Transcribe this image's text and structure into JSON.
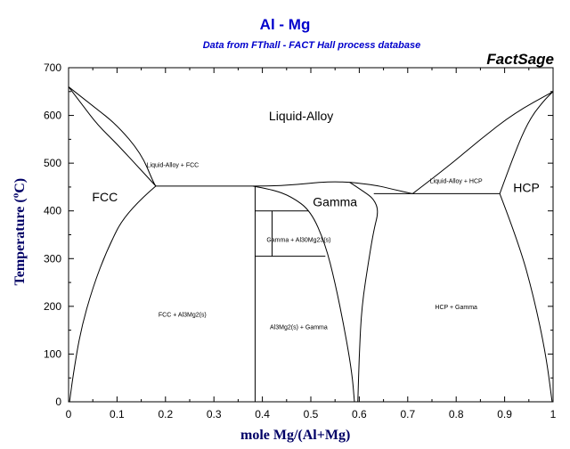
{
  "header": {
    "title": "Al - Mg",
    "subtitle": "Data from FThall - FACT Hall process database",
    "brand": "FactSage"
  },
  "chart_data": {
    "type": "phase-diagram",
    "xlabel": "mole Mg/(Al+Mg)",
    "ylabel": "Temperature (C)",
    "ylabel_sup": "o",
    "xlim": [
      0,
      1
    ],
    "ylim": [
      0,
      700
    ],
    "xticks": [
      "0",
      "0.1",
      "0.2",
      "0.3",
      "0.4",
      "0.5",
      "0.6",
      "0.7",
      "0.8",
      "0.9",
      "1"
    ],
    "yticks": [
      "0",
      "100",
      "200",
      "300",
      "400",
      "500",
      "600",
      "700"
    ],
    "colors": {
      "gamma": "#dd0000",
      "title": "#0000cc",
      "axis_label": "#000066"
    },
    "regions": [
      {
        "id": "liquid",
        "label": "Liquid-Alloy",
        "x": 0.48,
        "y": 590,
        "size": "big"
      },
      {
        "id": "fcc",
        "label": "FCC",
        "x": 0.075,
        "y": 420,
        "size": "big"
      },
      {
        "id": "hcp",
        "label": "HCP",
        "x": 0.945,
        "y": 440,
        "size": "big"
      },
      {
        "id": "gamma",
        "label": "Gamma",
        "x": 0.55,
        "y": 410,
        "size": "big",
        "color": "gamma"
      },
      {
        "id": "liq-fcc",
        "label": "Liquid-Alloy + FCC",
        "x": 0.215,
        "y": 492,
        "size": "small"
      },
      {
        "id": "liq-hcp",
        "label": "Liquid-Alloy + HCP",
        "x": 0.8,
        "y": 458,
        "size": "small"
      },
      {
        "id": "gamma-al30",
        "label": "Gamma + Al30Mg23(s)",
        "x": 0.475,
        "y": 335,
        "size": "small"
      },
      {
        "id": "fcc-al3mg2",
        "label": "FCC + Al3Mg2(s)",
        "x": 0.235,
        "y": 178,
        "size": "small"
      },
      {
        "id": "al3mg2-gamma",
        "label": "Al3Mg2(s) + Gamma",
        "x": 0.475,
        "y": 152,
        "size": "small"
      },
      {
        "id": "hcp-gamma",
        "label": "HCP + Gamma",
        "x": 0.8,
        "y": 194,
        "size": "small"
      }
    ],
    "boundaries": [
      {
        "id": "liquidus-left",
        "points": [
          [
            0,
            660
          ],
          [
            0.05,
            620
          ],
          [
            0.1,
            580
          ],
          [
            0.15,
            520
          ],
          [
            0.175,
            460
          ],
          [
            0.18,
            452
          ]
        ]
      },
      {
        "id": "solidus-fcc",
        "points": [
          [
            0,
            660
          ],
          [
            0.03,
            620
          ],
          [
            0.06,
            580
          ],
          [
            0.1,
            540
          ],
          [
            0.15,
            485
          ],
          [
            0.18,
            452
          ]
        ]
      },
      {
        "id": "fcc-solvus",
        "points": [
          [
            0.18,
            452
          ],
          [
            0.12,
            400
          ],
          [
            0.08,
            320
          ],
          [
            0.05,
            240
          ],
          [
            0.025,
            150
          ],
          [
            0.01,
            60
          ],
          [
            0.002,
            0
          ]
        ]
      },
      {
        "id": "eutectic-fcc",
        "points": [
          [
            0.18,
            452
          ],
          [
            0.38,
            452
          ]
        ]
      },
      {
        "id": "liquidus-mid-left",
        "points": [
          [
            0.38,
            452
          ],
          [
            0.42,
            452
          ],
          [
            0.47,
            455
          ],
          [
            0.52,
            460
          ],
          [
            0.55,
            461
          ],
          [
            0.58,
            460
          ]
        ]
      },
      {
        "id": "liquidus-mid-right",
        "points": [
          [
            0.58,
            460
          ],
          [
            0.63,
            455
          ],
          [
            0.67,
            445
          ],
          [
            0.71,
            436
          ]
        ]
      },
      {
        "id": "gamma-left",
        "points": [
          [
            0.38,
            452
          ],
          [
            0.42,
            445
          ],
          [
            0.46,
            430
          ],
          [
            0.5,
            400
          ],
          [
            0.53,
            330
          ],
          [
            0.55,
            250
          ],
          [
            0.57,
            150
          ],
          [
            0.585,
            60
          ],
          [
            0.59,
            0
          ]
        ]
      },
      {
        "id": "gamma-right",
        "points": [
          [
            0.58,
            460
          ],
          [
            0.61,
            440
          ],
          [
            0.63,
            425
          ],
          [
            0.64,
            400
          ],
          [
            0.63,
            360
          ],
          [
            0.62,
            300
          ],
          [
            0.605,
            200
          ],
          [
            0.6,
            100
          ],
          [
            0.597,
            0
          ]
        ]
      },
      {
        "id": "al3mg2-line",
        "points": [
          [
            0.385,
            452
          ],
          [
            0.385,
            0
          ]
        ]
      },
      {
        "id": "al30-box-top",
        "points": [
          [
            0.385,
            400
          ],
          [
            0.495,
            400
          ]
        ]
      },
      {
        "id": "al30-box-bottom",
        "points": [
          [
            0.385,
            305
          ],
          [
            0.53,
            305
          ]
        ]
      },
      {
        "id": "al30-line",
        "points": [
          [
            0.42,
            400
          ],
          [
            0.42,
            305
          ]
        ]
      },
      {
        "id": "eutectic-hcp",
        "points": [
          [
            0.63,
            436
          ],
          [
            0.89,
            436
          ]
        ]
      },
      {
        "id": "liquidus-right",
        "points": [
          [
            0.71,
            436
          ],
          [
            0.78,
            490
          ],
          [
            0.85,
            550
          ],
          [
            0.92,
            605
          ],
          [
            1,
            650
          ]
        ]
      },
      {
        "id": "solidus-hcp",
        "points": [
          [
            0.89,
            436
          ],
          [
            0.92,
            520
          ],
          [
            0.95,
            590
          ],
          [
            0.98,
            630
          ],
          [
            1,
            650
          ]
        ]
      },
      {
        "id": "hcp-solvus",
        "points": [
          [
            0.89,
            436
          ],
          [
            0.93,
            330
          ],
          [
            0.96,
            220
          ],
          [
            0.985,
            100
          ],
          [
            0.998,
            0
          ]
        ]
      }
    ]
  }
}
